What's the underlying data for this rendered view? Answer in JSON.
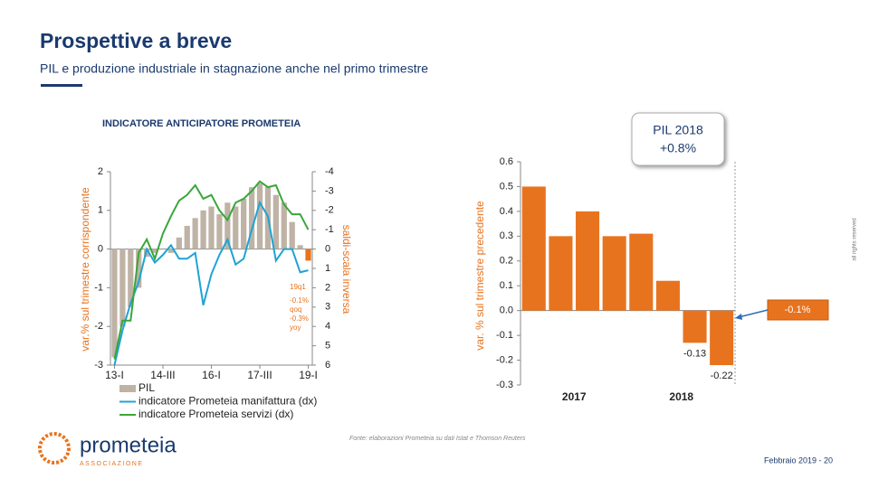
{
  "header": {
    "title": "Prospettive a breve",
    "subtitle": "PIL e produzione industriale in stagnazione anche nel primo trimestre"
  },
  "chart_data": [
    {
      "type": "bar",
      "title": "INDICATORE ANTICIPATORE PROMETEIA",
      "y_label": "var.% sul trimestre corrispondente",
      "y2_label": "saldi-scala inversa",
      "categories": [
        "13-I",
        null,
        null,
        null,
        null,
        null,
        "14-III",
        null,
        null,
        null,
        null,
        null,
        "16-I",
        null,
        null,
        null,
        null,
        null,
        "17-III",
        null,
        null,
        null,
        null,
        null,
        "19-I"
      ],
      "ylim": [
        -3,
        2
      ],
      "yticks": [
        -3,
        -2,
        -1,
        0,
        1,
        2
      ],
      "y2lim": [
        6,
        -4
      ],
      "y2ticks": [
        -4,
        -3,
        -2,
        -1,
        0,
        1,
        2,
        3,
        4,
        5,
        6
      ],
      "series": [
        {
          "name": "PIL",
          "type": "bar",
          "color": "#bfb3a6",
          "last_color": "#e8731e",
          "values": [
            -2.8,
            -2.0,
            -1.5,
            -1.0,
            -0.2,
            -0.1,
            0.0,
            -0.1,
            0.3,
            0.6,
            0.8,
            1.0,
            1.1,
            0.9,
            1.2,
            1.1,
            1.3,
            1.6,
            1.7,
            1.6,
            1.4,
            1.2,
            0.7,
            0.1,
            -0.3
          ]
        },
        {
          "name": "indicatore Prometeia manifattura (dx)",
          "type": "line",
          "axis": "y2",
          "color": "#1fa3d4",
          "values": [
            6.0,
            4.2,
            2.8,
            1.7,
            0.0,
            0.7,
            0.3,
            -0.2,
            0.5,
            0.5,
            0.2,
            2.9,
            1.3,
            0.3,
            -0.5,
            0.8,
            0.5,
            -1.0,
            -2.4,
            -1.7,
            0.6,
            0.0,
            0.0,
            1.2,
            1.1
          ]
        },
        {
          "name": "indicatore Prometeia servizi (dx)",
          "type": "line",
          "axis": "y2",
          "color": "#3aa63a",
          "values": [
            5.7,
            3.7,
            3.7,
            0.2,
            -0.5,
            0.5,
            -0.8,
            -1.7,
            -2.5,
            -2.8,
            -3.3,
            -2.6,
            -2.8,
            -2.0,
            -1.5,
            -2.4,
            -2.6,
            -3.0,
            -3.5,
            -3.2,
            -3.3,
            -2.3,
            -1.8,
            -1.8,
            -1.0
          ]
        }
      ],
      "annotations": [
        "19q1",
        "-0.1%",
        "qoq",
        "-0.3%",
        "yoy"
      ]
    },
    {
      "type": "bar",
      "y_label": "var. % sul trimestre precedente",
      "categories": [
        null,
        null,
        null,
        null,
        null,
        null,
        null,
        null
      ],
      "groups": [
        "2017",
        "2018"
      ],
      "values": [
        0.5,
        0.3,
        0.4,
        0.3,
        0.31,
        0.12,
        -0.13,
        -0.22
      ],
      "value_labels": [
        null,
        null,
        null,
        null,
        null,
        null,
        "-0.13",
        "-0.22"
      ],
      "color": "#e8731e",
      "ylim": [
        -0.3,
        0.6
      ],
      "yticks": [
        -0.3,
        -0.2,
        -0.1,
        {
          "value": 0,
          "label": "0.0"
        },
        0.1,
        0.2,
        0.3,
        0.4,
        0.5,
        0.6
      ],
      "callout_year": [
        "PIL 2018",
        "+0.8%"
      ],
      "callout_forecast": "-0.1%"
    }
  ],
  "footer": {
    "source": "Fonte: elaborazioni Prometeia su dati Istat e Thomson Reuters",
    "page": "Febbraio 2019 - 20",
    "rights": "all rights reserved",
    "logo": "prometeia",
    "logo_sub": "ASSOCIAZIONE"
  }
}
